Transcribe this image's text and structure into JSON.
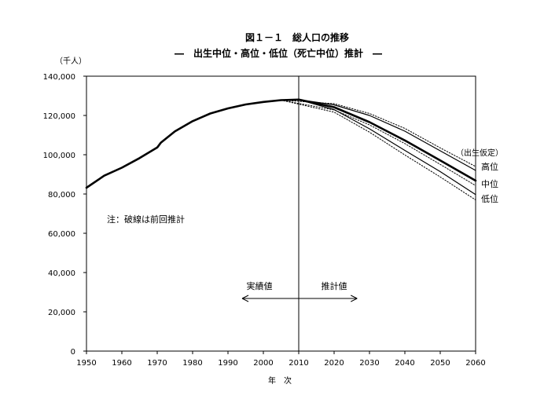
{
  "chart_data": {
    "type": "line",
    "title": "図１－１　総人口の推移",
    "subtitle": "―　出生中位・高位・低位（死亡中位）推計　―",
    "ylabel": "（千人）",
    "xlabel": "年　次",
    "xlim": [
      1950,
      2060
    ],
    "ylim": [
      0,
      140000
    ],
    "x_ticks": [
      1950,
      1960,
      1970,
      1980,
      1990,
      2000,
      2010,
      2020,
      2030,
      2040,
      2050,
      2060
    ],
    "y_ticks": [
      0,
      20000,
      40000,
      60000,
      80000,
      100000,
      120000,
      140000
    ],
    "y_tick_labels": [
      "0",
      "20,000",
      "40,000",
      "60,000",
      "80,000",
      "100,000",
      "120,000",
      "140,000"
    ],
    "grid": false,
    "divider_year": 2010,
    "series": [
      {
        "x": [
          1950,
          1955,
          1960,
          1965,
          1970,
          1971,
          1975,
          1980,
          1985,
          1990,
          1995,
          2000,
          2005,
          2010
        ],
        "values": [
          83200,
          89300,
          93400,
          98300,
          103700,
          106100,
          111900,
          117100,
          121000,
          123600,
          125600,
          126900,
          127800,
          128100
        ],
        "style": "solid-bold"
      },
      {
        "name": "高位",
        "x": [
          2010,
          2020,
          2030,
          2040,
          2050,
          2060
        ],
        "values": [
          128100,
          125400,
          120000,
          112000,
          102000,
          92000
        ],
        "style": "solid"
      },
      {
        "name": "中位",
        "x": [
          2010,
          2020,
          2030,
          2040,
          2050,
          2060
        ],
        "values": [
          128100,
          124200,
          116600,
          107300,
          97100,
          86800
        ],
        "style": "solid-bold"
      },
      {
        "name": "低位",
        "x": [
          2010,
          2020,
          2030,
          2040,
          2050,
          2060
        ],
        "values": [
          128100,
          123000,
          113200,
          102200,
          91400,
          79700
        ],
        "style": "solid"
      },
      {
        "x": [
          2005,
          2020,
          2030,
          2040,
          2050,
          2060
        ],
        "values": [
          127800,
          126000,
          121000,
          113400,
          103500,
          94000
        ],
        "style": "dotted"
      },
      {
        "x": [
          2005,
          2020,
          2030,
          2040,
          2050,
          2060
        ],
        "values": [
          127800,
          122800,
          115200,
          105700,
          95100,
          84300
        ],
        "style": "dotted"
      },
      {
        "x": [
          2005,
          2020,
          2030,
          2040,
          2050,
          2060
        ],
        "values": [
          127800,
          121700,
          111500,
          99900,
          88700,
          77000
        ],
        "style": "dotted"
      }
    ],
    "legend_header": "（出生仮定）",
    "annotations": {
      "note": "注：破線は前回推計",
      "actual": "実績値",
      "projected": "推計値"
    }
  }
}
